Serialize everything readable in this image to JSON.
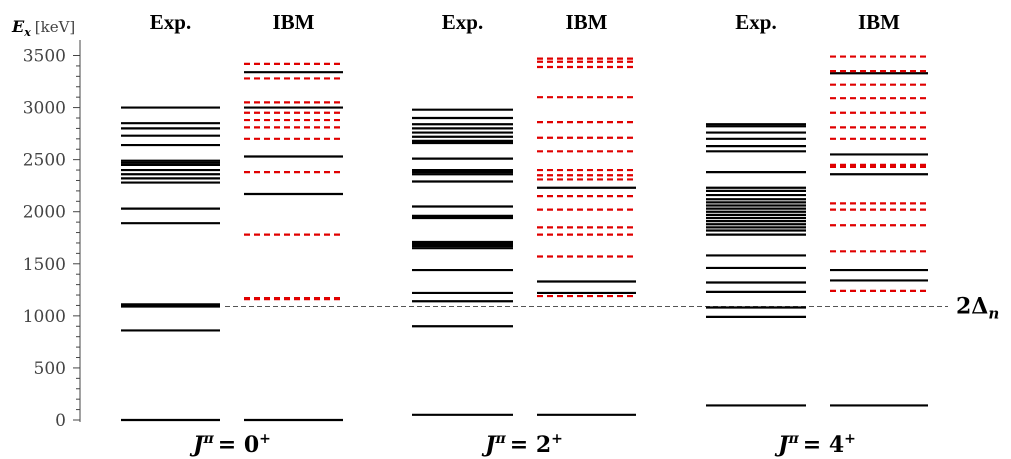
{
  "chart_data": {
    "type": "level-scheme",
    "y_axis_label": {
      "symbol": "E",
      "subscript": "x",
      "unit": "[keV]"
    },
    "y_ticks": [
      0,
      500,
      1000,
      1500,
      2000,
      2500,
      3000,
      3500
    ],
    "ylim": [
      0,
      3600
    ],
    "reference_line": {
      "value": 1090,
      "label": "2Δ",
      "subscript": "n"
    },
    "groups": [
      {
        "label": "J",
        "sup": "π",
        "value": "= 0",
        "parity": "+",
        "exp": {
          "header": "Exp.",
          "levels": [
            0,
            860,
            1090,
            1100,
            1110,
            1890,
            2030,
            2280,
            2320,
            2360,
            2400,
            2450,
            2470,
            2490,
            2640,
            2730,
            2800,
            2850,
            3000
          ]
        },
        "ibm": {
          "header": "IBM",
          "solid": [
            0,
            2170,
            2530,
            3000,
            3340
          ],
          "dashed": [
            1160,
            1170,
            1780,
            2380,
            2700,
            2810,
            2880,
            2950,
            3050,
            3280,
            3420
          ]
        }
      },
      {
        "label": "J",
        "sup": "π",
        "value": "= 2",
        "parity": "+",
        "exp": {
          "header": "Exp.",
          "levels": [
            50,
            900,
            1140,
            1220,
            1440,
            1650,
            1670,
            1690,
            1710,
            1940,
            1960,
            2050,
            2290,
            2360,
            2380,
            2400,
            2510,
            2660,
            2680,
            2720,
            2760,
            2800,
            2840,
            2900,
            2980
          ]
        },
        "ibm": {
          "header": "IBM",
          "solid": [
            50,
            1220,
            1330,
            2230
          ],
          "dashed": [
            1190,
            1570,
            1780,
            1850,
            2020,
            2150,
            2310,
            2350,
            2400,
            2580,
            2710,
            2860,
            3100,
            3390,
            3440,
            3470
          ]
        }
      },
      {
        "label": "J",
        "sup": "π",
        "value": "= 4",
        "parity": "+",
        "exp": {
          "header": "Exp.",
          "levels": [
            140,
            990,
            1080,
            1230,
            1320,
            1460,
            1580,
            1780,
            1820,
            1850,
            1880,
            1910,
            1940,
            1970,
            2000,
            2030,
            2060,
            2090,
            2120,
            2160,
            2200,
            2230,
            2380,
            2580,
            2630,
            2700,
            2760,
            2820,
            2840
          ]
        },
        "ibm": {
          "header": "IBM",
          "solid": [
            140,
            1340,
            1440,
            2360,
            2550,
            3330
          ],
          "dashed": [
            1240,
            1620,
            1870,
            2020,
            2080,
            2430,
            2450,
            2700,
            2810,
            2950,
            3090,
            3220,
            3350,
            3490
          ]
        }
      }
    ]
  },
  "colors": {
    "exp": "#000000",
    "ibm_solid": "#000000",
    "ibm_dashed": "#e00000",
    "axis": "#444444",
    "ref_line": "#555555"
  }
}
